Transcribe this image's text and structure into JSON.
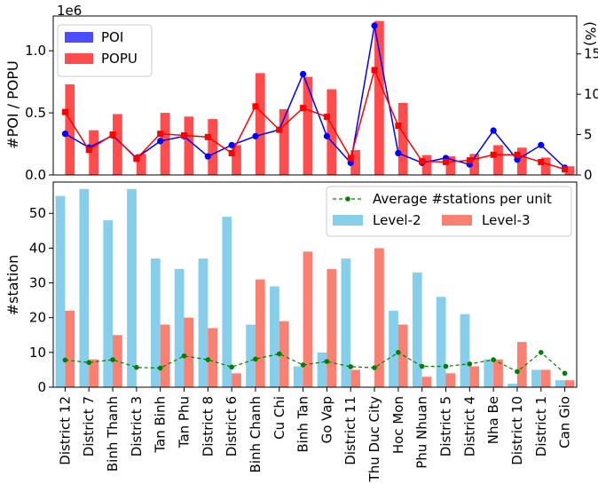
{
  "chart_data": [
    {
      "type": "bar",
      "categories": [
        "District 12",
        "District 7",
        "Binh Thanh",
        "District 3",
        "Tan Binh",
        "Tan Phu",
        "District 8",
        "District 6",
        "Binh Chanh",
        "Cu Chi",
        "Binh Tan",
        "Go Vap",
        "District 11",
        "Thu Duc City",
        "Hoc Mon",
        "Phu Nhuan",
        "District 5",
        "District 4",
        "Nha Be",
        "District 10",
        "District 1",
        "Can Gio"
      ],
      "ylabel": "#POI / POPU",
      "y_offset_text": "1e6",
      "ylim": [
        0,
        1.28
      ],
      "yticks": [
        "0.0",
        "0.5",
        "1.0"
      ],
      "ylabel_right": "(%)",
      "ylim_right": [
        0,
        19.7
      ],
      "yticks_right": [
        "0",
        "5",
        "10",
        "15"
      ],
      "legend": {
        "position": "top-left",
        "entries": [
          "POI",
          "POPU"
        ]
      },
      "series": [
        {
          "name": "POI",
          "color": "#0000ff",
          "bars": [
            0.0,
            0.0,
            0.0,
            0.0,
            0.0,
            0.0,
            0.0,
            0.0,
            0.0,
            0.0,
            0.0,
            0.0,
            0.0,
            0.0,
            0.0,
            0.0,
            0.0,
            0.0,
            0.0,
            0.0,
            0.0,
            0.0
          ],
          "line_percent": [
            5.1,
            3.4,
            4.9,
            2.1,
            4.2,
            4.8,
            2.3,
            3.7,
            4.8,
            5.6,
            12.5,
            4.8,
            1.5,
            18.5,
            2.7,
            1.5,
            2.1,
            1.3,
            5.5,
            1.9,
            3.7,
            0.9
          ]
        },
        {
          "name": "POPU",
          "color": "#ff0000",
          "bars": [
            0.73,
            0.36,
            0.49,
            0.17,
            0.5,
            0.47,
            0.45,
            0.24,
            0.82,
            0.53,
            0.79,
            0.69,
            0.2,
            1.24,
            0.58,
            0.16,
            0.15,
            0.17,
            0.24,
            0.22,
            0.14,
            0.07
          ],
          "line_percent": [
            7.8,
            3.1,
            5.0,
            2.0,
            5.1,
            4.9,
            4.7,
            2.7,
            8.5,
            5.6,
            8.3,
            7.2,
            2.1,
            13.0,
            6.1,
            1.7,
            1.6,
            1.8,
            2.5,
            2.5,
            1.6,
            0.7
          ]
        }
      ]
    },
    {
      "type": "bar",
      "categories": [
        "District 12",
        "District 7",
        "Binh Thanh",
        "District 3",
        "Tan Binh",
        "Tan Phu",
        "District 8",
        "District 6",
        "Binh Chanh",
        "Cu Chi",
        "Binh Tan",
        "Go Vap",
        "District 11",
        "Thu Duc City",
        "Hoc Mon",
        "Phu Nhuan",
        "District 5",
        "District 4",
        "Nha Be",
        "District 10",
        "District 1",
        "Can Gio"
      ],
      "ylabel": "#station",
      "ylim": [
        0,
        59
      ],
      "yticks": [
        "0",
        "10",
        "20",
        "30",
        "40",
        "50"
      ],
      "legend": {
        "position": "top-right"
      },
      "series": [
        {
          "name": "Level-2",
          "color": "#87ceeb",
          "values": [
            55,
            57,
            48,
            57,
            37,
            34,
            37,
            49,
            18,
            29,
            6,
            10,
            37,
            0,
            22,
            33,
            26,
            21,
            8,
            1,
            5,
            2
          ]
        },
        {
          "name": "Level-3",
          "color": "#fa8072",
          "values": [
            22,
            8,
            15,
            0,
            18,
            20,
            17,
            4,
            31,
            19,
            39,
            34,
            5,
            40,
            18,
            3,
            4,
            6,
            8,
            13,
            5,
            2
          ]
        },
        {
          "name": "Average #stations per unit",
          "type": "line",
          "color": "#008000",
          "values": [
            7.8,
            7.1,
            7.9,
            5.7,
            5.5,
            9.0,
            7.9,
            5.8,
            8.1,
            9.6,
            6.4,
            7.4,
            5.9,
            5.6,
            10.0,
            6.0,
            6.0,
            6.7,
            7.9,
            4.5,
            10.0,
            4.0
          ]
        }
      ]
    }
  ]
}
